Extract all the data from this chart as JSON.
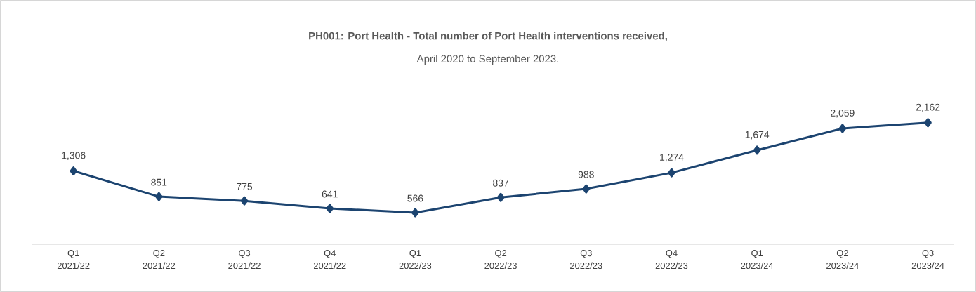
{
  "chart_data": {
    "type": "line",
    "title": "PH001: Port Health - Total number of Port Health interventions received,",
    "subtitle": "April 2020 to September 2023.",
    "categories": [
      "Q1 2021/22",
      "Q2 2021/22",
      "Q3 2021/22",
      "Q4 2021/22",
      "Q1 2022/23",
      "Q2 2022/23",
      "Q3 2022/23",
      "Q4 2022/23",
      "Q1 2023/24",
      "Q2 2023/24",
      "Q3 2023/24"
    ],
    "values": [
      1306,
      851,
      775,
      641,
      566,
      837,
      988,
      1274,
      1674,
      2059,
      2162
    ],
    "value_labels": [
      "1,306",
      "851",
      "775",
      "641",
      "566",
      "837",
      "988",
      "1,274",
      "1,674",
      "2,059",
      "2,162"
    ],
    "color": "#1c4470",
    "marker": "diamond",
    "line_style": "solid",
    "grid": false,
    "tick_labels": "x"
  }
}
